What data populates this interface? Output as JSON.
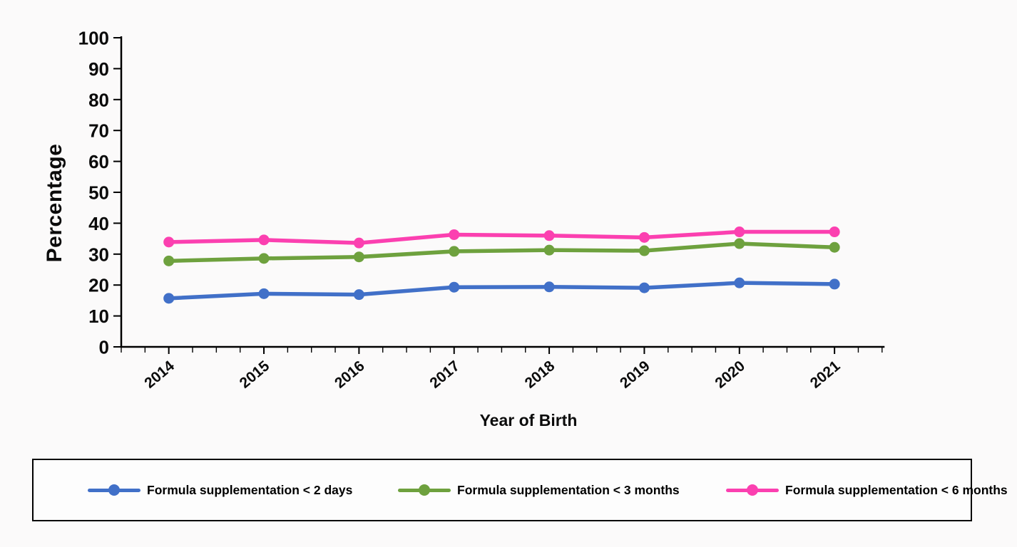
{
  "background_color": "#FBFAFA",
  "chart_data": {
    "type": "line",
    "title": "",
    "xlabel": "Year of Birth",
    "ylabel": "Percentage",
    "categories": [
      "2014",
      "2015",
      "2016",
      "2017",
      "2018",
      "2019",
      "2020",
      "2021"
    ],
    "ylim": [
      0,
      100
    ],
    "yticks": [
      0,
      10,
      20,
      30,
      40,
      50,
      60,
      70,
      80,
      90,
      100
    ],
    "grid": false,
    "legend_position": "bottom-box",
    "axis_color": "#000000",
    "series": [
      {
        "name": "Formula supplementation < 2 days",
        "color": "#4170C8",
        "marker": "circle",
        "values": [
          15.7,
          17.2,
          16.9,
          19.3,
          19.4,
          19.1,
          20.7,
          20.3
        ]
      },
      {
        "name": "Formula supplementation < 3 months",
        "color": "#6EA13E",
        "marker": "circle",
        "values": [
          27.8,
          28.6,
          29.1,
          30.9,
          31.3,
          31.1,
          33.4,
          32.2
        ]
      },
      {
        "name": "Formula supplementation < 6 months",
        "color": "#FB40B0",
        "marker": "circle",
        "values": [
          33.9,
          34.6,
          33.6,
          36.3,
          36.0,
          35.4,
          37.2,
          37.2
        ]
      }
    ]
  }
}
